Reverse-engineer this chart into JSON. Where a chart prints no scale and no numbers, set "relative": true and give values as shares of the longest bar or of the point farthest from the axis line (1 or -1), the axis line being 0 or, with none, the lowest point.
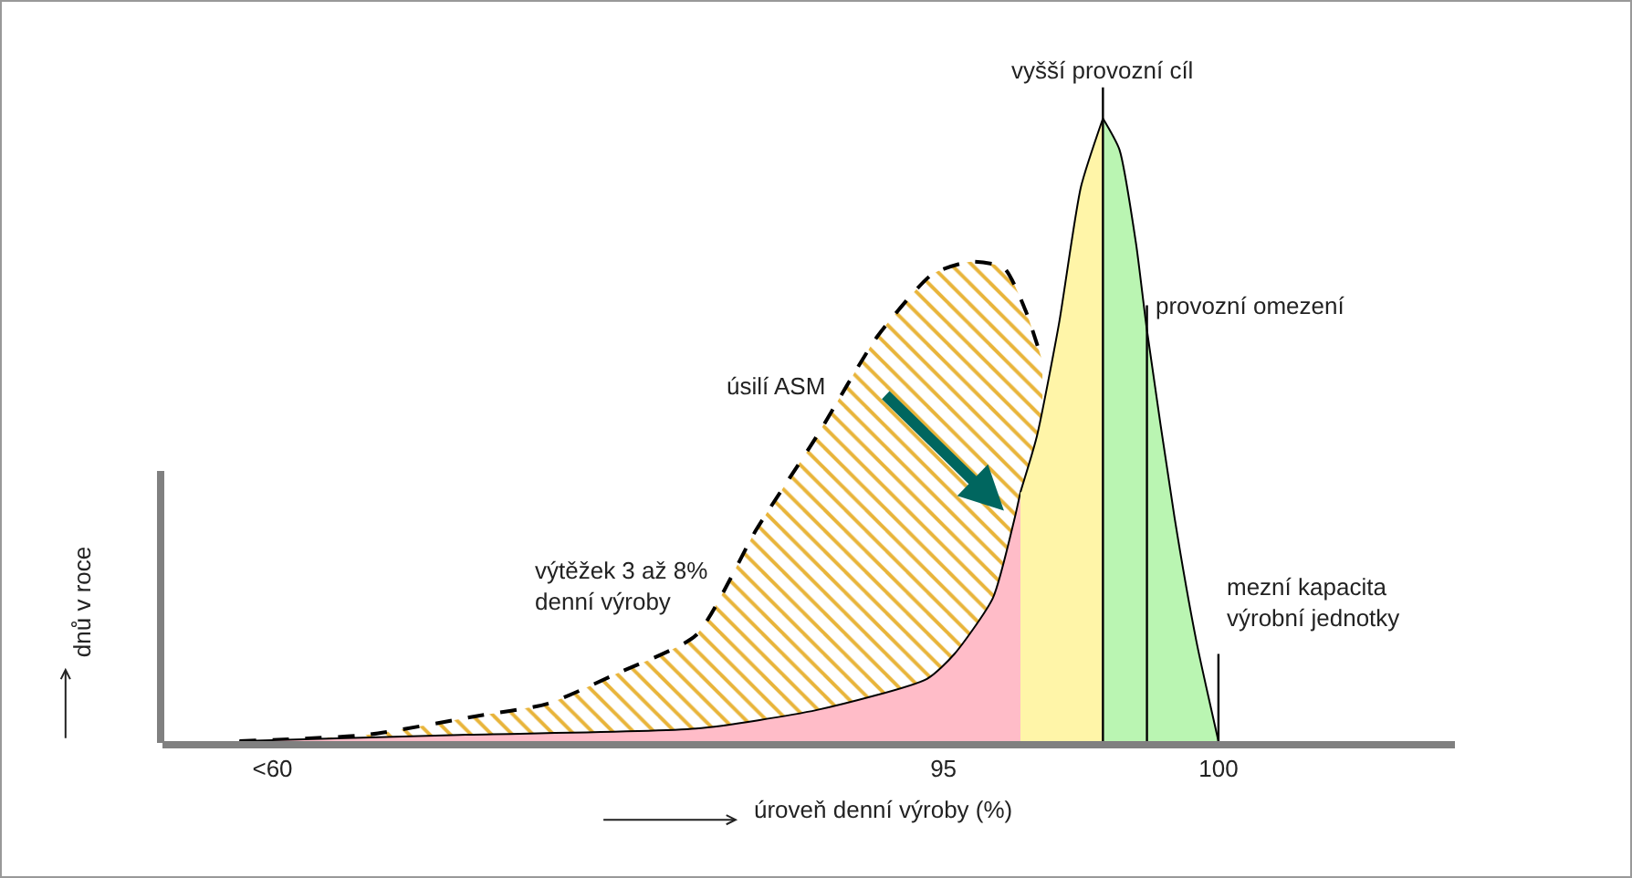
{
  "chart_data": {
    "type": "area",
    "relative": true,
    "xlabel": "úroveň denní výroby (%)",
    "ylabel": "dnů v roce",
    "xlim": [
      80.8,
      104.3
    ],
    "xticks": [
      {
        "value": 82.8,
        "label": "<60"
      },
      95,
      100
    ],
    "grid": false,
    "series": [
      {
        "color": "#e8b43a",
        "line_style": "dashed",
        "x": [
          82.2,
          84.5,
          86.5,
          87.8,
          89.1,
          90.5,
          91.6,
          92.7,
          93.8,
          94.8,
          95.5,
          96.1,
          96.5,
          96.8
        ],
        "values": [
          0,
          0.01,
          0.04,
          0.06,
          0.11,
          0.17,
          0.34,
          0.49,
          0.65,
          0.75,
          0.77,
          0.76,
          0.69,
          0.61
        ]
      },
      {
        "color": "#ffbcc8",
        "line_style": "solid",
        "x": [
          82.2,
          86.2,
          90.5,
          92.7,
          94.7,
          95.2,
          95.9,
          96.3,
          96.4
        ],
        "values": [
          0,
          0.01,
          0.02,
          0.05,
          0.1,
          0.14,
          0.23,
          0.36,
          0.4
        ]
      },
      {
        "color": "#fff5a8",
        "line_style": "solid",
        "x": [
          96.4,
          96.7,
          97.1,
          97.5,
          97.9
        ],
        "values": [
          0.4,
          0.49,
          0.67,
          0.89,
          1
        ]
      },
      {
        "color": "#baf5b2",
        "line_style": "solid",
        "x": [
          97.9,
          98.2,
          98.5,
          98.7,
          99.2,
          99.6,
          100
        ],
        "values": [
          1,
          0.95,
          0.8,
          0.66,
          0.36,
          0.16,
          0
        ]
      }
    ],
    "ref_lines": [
      {
        "axis": "x",
        "value": 97.9,
        "label": "vyšší provozní cíl"
      },
      {
        "axis": "x",
        "value": 98.7,
        "label": "provozní omezení"
      },
      {
        "axis": "x",
        "value": 100,
        "label": "mezní kapacita\nvýrobní jednotky"
      }
    ],
    "annotations": [
      "úsilí ASM",
      "výtěžek 3 až 8%\ndenní výroby"
    ]
  }
}
